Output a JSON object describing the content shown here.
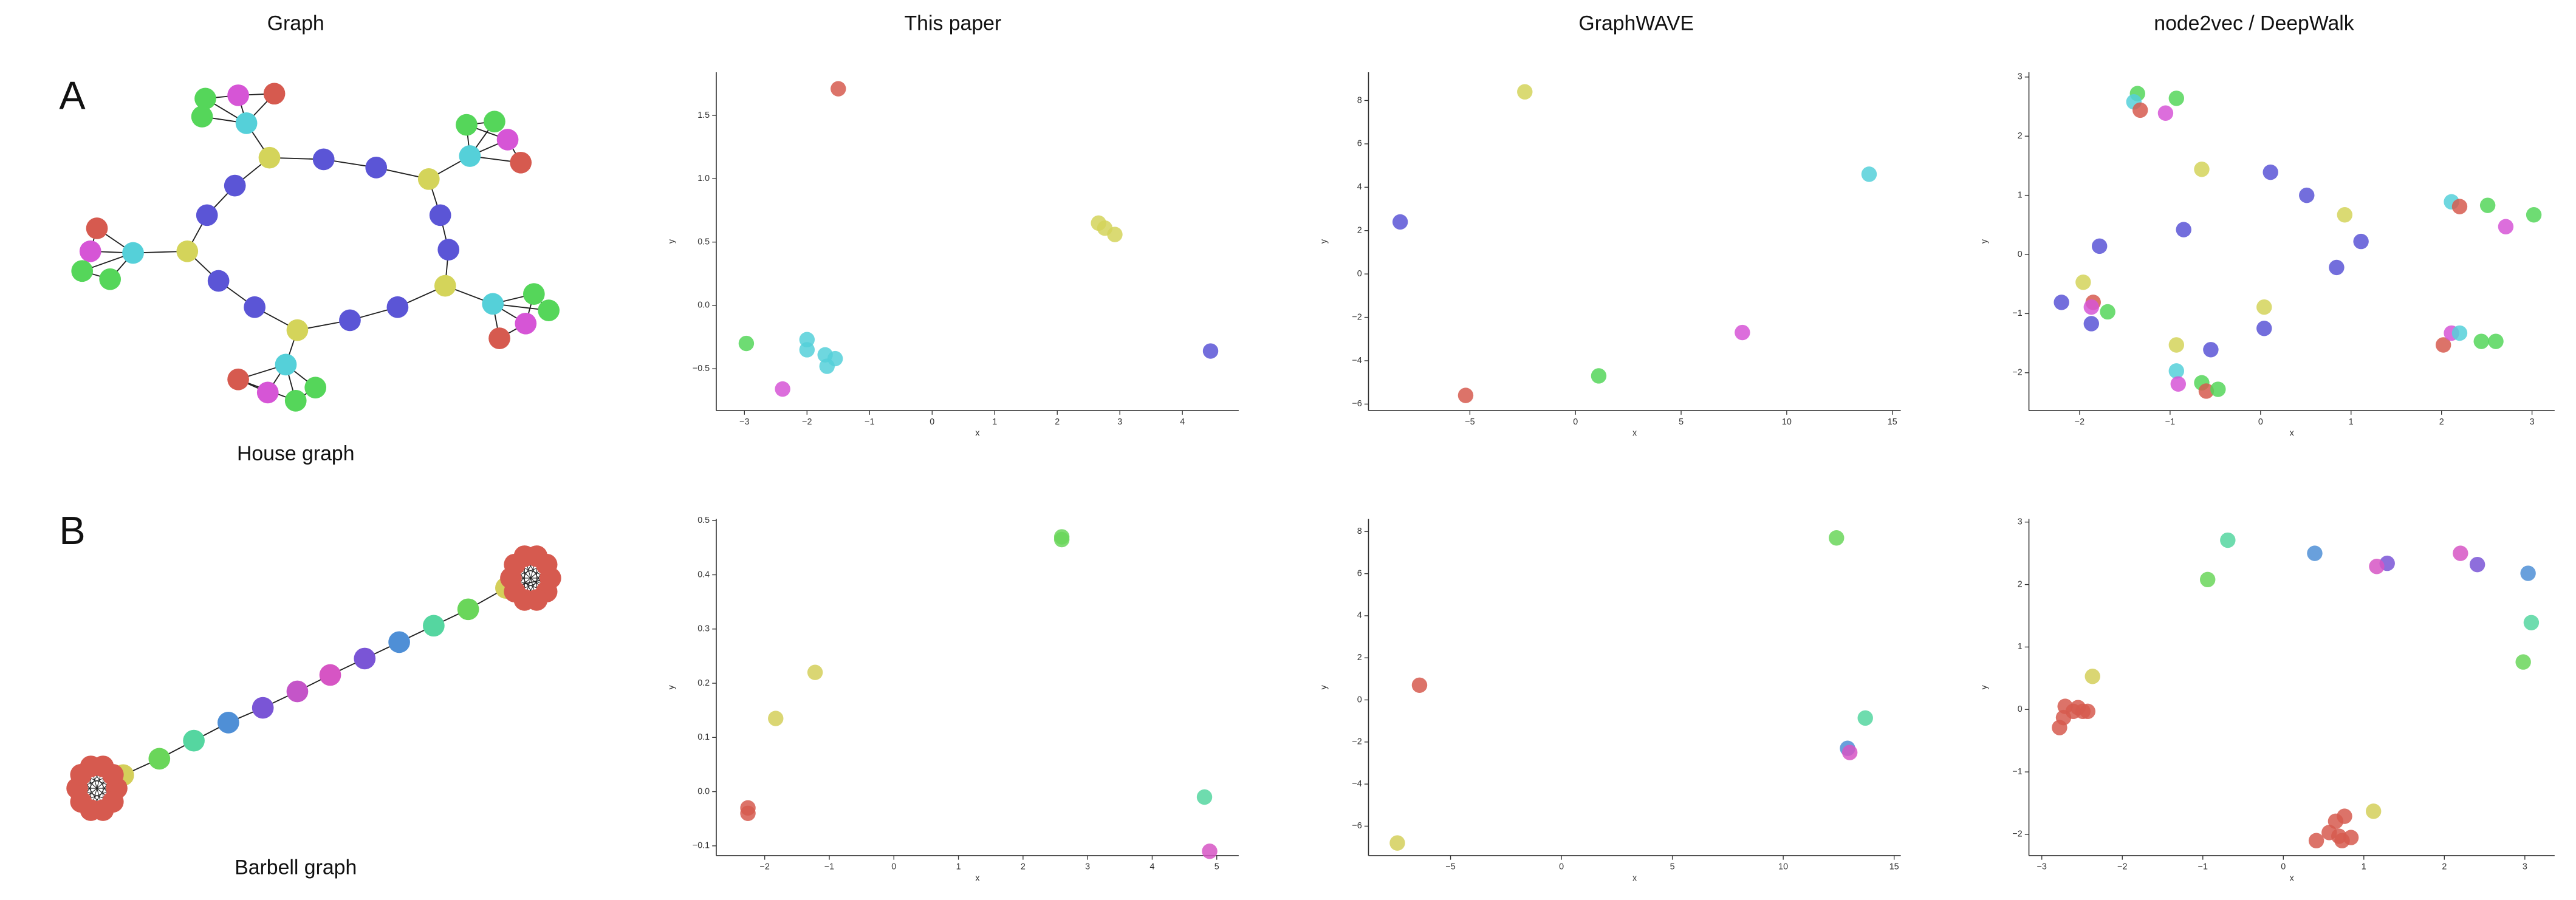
{
  "column_titles": [
    "Graph",
    "This paper",
    "GraphWAVE",
    "node2vec / DeepWalk"
  ],
  "row_labels": [
    "A",
    "B"
  ],
  "graph_captions": [
    "House graph",
    "Barbell graph"
  ],
  "chart_data": [
    {
      "type": "scatter",
      "x_label": "x",
      "y_label": "y",
      "xlim": [
        -3.45,
        4.9
      ],
      "ylim": [
        -0.83,
        1.84
      ],
      "xticks": [
        {
          "value": -3,
          "label": "−3"
        },
        {
          "value": -2,
          "label": "−2"
        },
        {
          "value": -1,
          "label": "−1"
        },
        0,
        1,
        2,
        3,
        4
      ],
      "yticks": [
        {
          "value": -0.5,
          "label": "−0.5"
        },
        {
          "value": 0,
          "label": "0.0"
        },
        0.5,
        {
          "value": 1,
          "label": "1.0"
        },
        1.5
      ],
      "x": [
        -1.5,
        2.66,
        2.76,
        2.92,
        4.45,
        -2.97,
        -2.0,
        -2.0,
        -1.71,
        -1.55,
        -1.68,
        -2.39
      ],
      "values": [
        1.71,
        0.65,
        0.61,
        0.56,
        -0.36,
        -0.3,
        -0.27,
        -0.35,
        -0.39,
        -0.42,
        -0.48,
        -0.66
      ],
      "colors": [
        "#d65a4f",
        "#d4d45a",
        "#d4d45a",
        "#d4d45a",
        "#5b55d6",
        "#55d65a",
        "#55d0d9",
        "#55d0d9",
        "#55d0d9",
        "#55d0d9",
        "#55d0d9",
        "#d655d6"
      ]
    },
    {
      "type": "scatter",
      "x_label": "x",
      "y_label": "y",
      "xlim": [
        -9.8,
        15.4
      ],
      "ylim": [
        -6.3,
        9.3
      ],
      "xticks": [
        {
          "value": -5,
          "label": "−5"
        },
        0,
        5,
        10,
        15
      ],
      "yticks": [
        {
          "value": -6,
          "label": "−6"
        },
        {
          "value": -4,
          "label": "−4"
        },
        {
          "value": -2,
          "label": "−2"
        },
        0,
        2,
        4,
        6,
        8
      ],
      "x": [
        -2.4,
        -8.3,
        13.9,
        7.9,
        1.1,
        -5.2
      ],
      "values": [
        8.4,
        2.4,
        4.6,
        -2.7,
        -4.7,
        -5.6
      ],
      "colors": [
        "#d4d45a",
        "#5b55d6",
        "#55d0d9",
        "#d655d6",
        "#55d65a",
        "#d65a4f"
      ]
    },
    {
      "type": "scatter",
      "x_label": "x",
      "y_label": "y",
      "xlim": [
        -2.56,
        3.25
      ],
      "ylim": [
        -2.64,
        3.08
      ],
      "xticks": [
        {
          "value": -2,
          "label": "−2"
        },
        {
          "value": -1,
          "label": "−1"
        },
        0,
        1,
        2,
        3
      ],
      "yticks": [
        {
          "value": -2,
          "label": "−2"
        },
        {
          "value": -1,
          "label": "−1"
        },
        0,
        1,
        2,
        3
      ],
      "x": [
        -1.36,
        -1.4,
        -1.33,
        -1.05,
        -0.93,
        -0.65,
        0.11,
        0.51,
        2.11,
        2.2,
        2.51,
        3.02,
        0.93,
        2.71,
        -0.85,
        -1.78,
        1.11,
        0.84,
        -1.96,
        -2.2,
        -1.85,
        -1.87,
        -1.69,
        -1.87,
        0.04,
        0.04,
        -0.93,
        -0.55,
        -0.93,
        -0.91,
        -0.65,
        -0.6,
        -0.47,
        2.02,
        2.11,
        2.2,
        2.44,
        2.6
      ],
      "values": [
        2.72,
        2.58,
        2.44,
        2.39,
        2.64,
        1.44,
        1.39,
        1.0,
        0.89,
        0.81,
        0.83,
        0.67,
        0.67,
        0.47,
        0.42,
        0.14,
        0.22,
        -0.22,
        -0.47,
        -0.81,
        -0.81,
        -0.89,
        -0.97,
        -1.17,
        -0.89,
        -1.25,
        -1.53,
        -1.61,
        -1.97,
        -2.19,
        -2.17,
        -2.31,
        -2.28,
        -1.53,
        -1.33,
        -1.33,
        -1.47,
        -1.47
      ],
      "colors": [
        "#55d65a",
        "#55d0d9",
        "#d65a4f",
        "#d655d6",
        "#55d65a",
        "#d4d45a",
        "#5b55d6",
        "#5b55d6",
        "#55d0d9",
        "#d65a4f",
        "#55d65a",
        "#55d65a",
        "#d4d45a",
        "#d655d6",
        "#5b55d6",
        "#5b55d6",
        "#5b55d6",
        "#5b55d6",
        "#d4d45a",
        "#5b55d6",
        "#d65a4f",
        "#d655d6",
        "#55d65a",
        "#5b55d6",
        "#d4d45a",
        "#5b55d6",
        "#d4d45a",
        "#5b55d6",
        "#55d0d9",
        "#d655d6",
        "#55d65a",
        "#d65a4f",
        "#55d65a",
        "#d65a4f",
        "#d655d6",
        "#55d0d9",
        "#55d65a",
        "#55d65a"
      ]
    },
    {
      "type": "scatter",
      "x_label": "x",
      "y_label": "y",
      "xlim": [
        -2.75,
        5.34
      ],
      "ylim": [
        -0.118,
        0.503
      ],
      "xticks": [
        {
          "value": -2,
          "label": "−2"
        },
        {
          "value": -1,
          "label": "−1"
        },
        0,
        1,
        2,
        3,
        4,
        5
      ],
      "yticks": [
        {
          "value": -0.1,
          "label": "−0.1"
        },
        {
          "value": 0,
          "label": "0.0"
        },
        0.1,
        0.2,
        0.3,
        0.4,
        0.5
      ],
      "x": [
        2.6,
        2.6,
        -1.22,
        -1.83,
        -2.26,
        -2.26,
        4.81,
        4.89
      ],
      "values": [
        0.465,
        0.47,
        0.22,
        0.135,
        -0.03,
        -0.04,
        -0.01,
        -0.11
      ],
      "colors": [
        "#6ad65a",
        "#6ad65a",
        "#d4cf5a",
        "#d4cf5a",
        "#d65a4f",
        "#d65a4f",
        "#55d6a0",
        "#d655c4"
      ]
    },
    {
      "type": "scatter",
      "x_label": "x",
      "y_label": "y",
      "xlim": [
        -8.7,
        15.3
      ],
      "ylim": [
        -7.4,
        8.6
      ],
      "xticks": [
        {
          "value": -5,
          "label": "−5"
        },
        0,
        5,
        10,
        15
      ],
      "yticks": [
        {
          "value": -6,
          "label": "−6"
        },
        {
          "value": -4,
          "label": "−4"
        },
        {
          "value": -2,
          "label": "−2"
        },
        0,
        2,
        4,
        6,
        8
      ],
      "x": [
        12.4,
        -6.4,
        13.7,
        12.9,
        13.0,
        -7.4
      ],
      "values": [
        7.7,
        0.7,
        -0.86,
        -2.3,
        -2.5,
        -6.8
      ],
      "colors": [
        "#6ad65a",
        "#d65a4f",
        "#55d6a0",
        "#4f8fd6",
        "#d655c4",
        "#d4cf5a"
      ]
    },
    {
      "type": "scatter",
      "x_label": "x",
      "y_label": "y",
      "xlim": [
        -3.16,
        3.37
      ],
      "ylim": [
        -2.34,
        3.05
      ],
      "xticks": [
        {
          "value": -3,
          "label": "−3"
        },
        {
          "value": -2,
          "label": "−2"
        },
        {
          "value": -1,
          "label": "−1"
        },
        0,
        1,
        2,
        3
      ],
      "yticks": [
        {
          "value": -2,
          "label": "−2"
        },
        {
          "value": -1,
          "label": "−1"
        },
        0,
        1,
        2,
        3
      ],
      "x": [
        -0.69,
        -0.94,
        0.39,
        1.29,
        1.16,
        2.2,
        2.41,
        3.04,
        3.08,
        2.98,
        -2.37,
        -2.71,
        -2.61,
        -2.73,
        -2.49,
        -2.43,
        -2.78,
        -2.55,
        1.12,
        0.65,
        0.76,
        0.41,
        0.69,
        0.84,
        0.57,
        0.73
      ],
      "values": [
        2.71,
        2.08,
        2.5,
        2.34,
        2.29,
        2.5,
        2.32,
        2.18,
        1.39,
        0.76,
        0.53,
        0.05,
        -0.03,
        -0.13,
        -0.03,
        -0.03,
        -0.29,
        0.03,
        -1.63,
        -1.79,
        -1.71,
        -2.1,
        -2.03,
        -2.05,
        -1.97,
        -2.1
      ],
      "colors": [
        "#55d6a0",
        "#6ad65a",
        "#4f8fd6",
        "#7a55d6",
        "#d655c4",
        "#d655c4",
        "#7a55d6",
        "#4f8fd6",
        "#55d6a0",
        "#6ad65a",
        "#d4cf5a",
        "#d65a4f",
        "#d65a4f",
        "#d65a4f",
        "#d65a4f",
        "#d65a4f",
        "#d65a4f",
        "#d65a4f",
        "#d4cf5a",
        "#d65a4f",
        "#d65a4f",
        "#d65a4f",
        "#d65a4f",
        "#d65a4f",
        "#d65a4f",
        "#d65a4f"
      ]
    }
  ]
}
